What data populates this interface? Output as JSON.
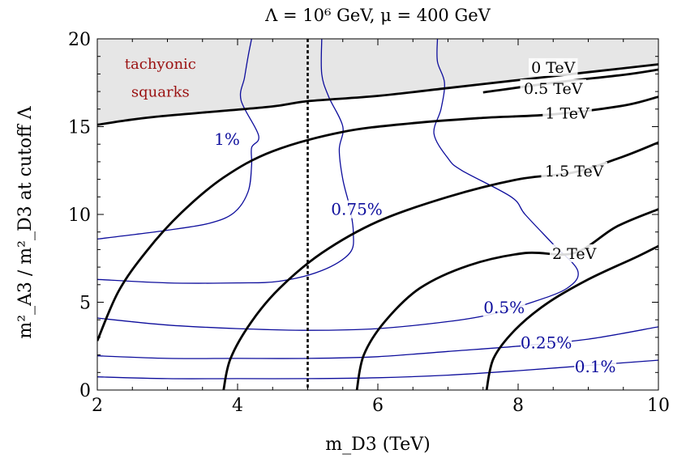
{
  "chart_data": {
    "type": "contour",
    "title": "Λ = 10⁶ GeV, μ = 400 GeV",
    "xlabel": "m_D3 (TeV)",
    "ylabel": "m²_A3 / m²_D3 at cutoff Λ",
    "xlim": [
      2,
      10
    ],
    "ylim": [
      0,
      20
    ],
    "xticks": [
      "2",
      "4",
      "6",
      "8",
      "10"
    ],
    "yticks": [
      "0",
      "5",
      "10",
      "15",
      "20"
    ],
    "vertical_line": {
      "x": 5,
      "style": "dotted"
    },
    "region": {
      "label_line1": "tachyonic",
      "label_line2": "squarks",
      "color": "#e6e6e6",
      "boundary": [
        [
          2,
          15.1
        ],
        [
          2.4,
          15.35
        ],
        [
          2.8,
          15.55
        ],
        [
          3.5,
          15.8
        ],
        [
          4.5,
          16.15
        ],
        [
          5,
          16.45
        ],
        [
          6,
          16.75
        ],
        [
          7,
          17.2
        ],
        [
          8,
          17.65
        ],
        [
          9,
          18.1
        ],
        [
          10,
          18.55
        ]
      ]
    },
    "black_series": [
      {
        "name": "0 TeV",
        "label": "0 TeV",
        "label_at": [
          8.5,
          18.3
        ],
        "points": [
          [
            2,
            15.1
          ],
          [
            2.4,
            15.35
          ],
          [
            2.8,
            15.55
          ],
          [
            3.5,
            15.8
          ],
          [
            4.5,
            16.15
          ],
          [
            5,
            16.45
          ],
          [
            6,
            16.75
          ],
          [
            7,
            17.2
          ],
          [
            8,
            17.65
          ],
          [
            9,
            18.1
          ],
          [
            10,
            18.55
          ]
        ]
      },
      {
        "name": "0.5 TeV",
        "label": "0.5 TeV",
        "label_at": [
          8.5,
          17.1
        ],
        "points": [
          [
            7.5,
            16.95
          ],
          [
            8.5,
            17.5
          ],
          [
            9.5,
            17.95
          ],
          [
            10,
            18.25
          ]
        ]
      },
      {
        "name": "1 TeV",
        "label": "1 TeV",
        "label_at": [
          8.7,
          15.7
        ],
        "points": [
          [
            2,
            2.8
          ],
          [
            2.3,
            5.6
          ],
          [
            2.7,
            7.9
          ],
          [
            3.2,
            10.1
          ],
          [
            3.8,
            12.1
          ],
          [
            4.5,
            13.6
          ],
          [
            5.5,
            14.7
          ],
          [
            6.5,
            15.2
          ],
          [
            7.5,
            15.5
          ],
          [
            8.5,
            15.7
          ],
          [
            9.5,
            16.2
          ],
          [
            10,
            16.7
          ]
        ]
      },
      {
        "name": "1.5 TeV",
        "label": "1.5 TeV",
        "label_at": [
          8.8,
          12.4
        ],
        "points": [
          [
            3.8,
            0
          ],
          [
            3.9,
            1.8
          ],
          [
            4.2,
            3.9
          ],
          [
            4.6,
            5.8
          ],
          [
            5.2,
            7.8
          ],
          [
            6,
            9.6
          ],
          [
            7,
            11
          ],
          [
            8,
            12
          ],
          [
            8.8,
            12.4
          ],
          [
            9.5,
            13.3
          ],
          [
            10,
            14.1
          ]
        ]
      },
      {
        "name": "2 TeV",
        "label": "2 TeV",
        "label_at": [
          8.8,
          7.7
        ],
        "points": [
          [
            5.7,
            0
          ],
          [
            5.8,
            2
          ],
          [
            6.1,
            3.9
          ],
          [
            6.6,
            5.8
          ],
          [
            7.3,
            7.1
          ],
          [
            8.1,
            7.8
          ],
          [
            8.8,
            7.8
          ],
          [
            9.4,
            9.3
          ],
          [
            10,
            10.3
          ]
        ]
      },
      {
        "name": "",
        "label": "",
        "points": [
          [
            7.55,
            0
          ],
          [
            7.65,
            1.8
          ],
          [
            7.95,
            3.4
          ],
          [
            8.4,
            4.9
          ],
          [
            9,
            6.3
          ],
          [
            9.7,
            7.6
          ],
          [
            10,
            8.2
          ]
        ]
      }
    ],
    "blue_series": [
      {
        "name": "1%",
        "label": "1%",
        "label_at": [
          3.85,
          14.2
        ],
        "points": [
          [
            2,
            8.6
          ],
          [
            3,
            9.1
          ],
          [
            3.6,
            9.5
          ],
          [
            3.95,
            10.1
          ],
          [
            4.15,
            11.3
          ],
          [
            4.2,
            12.8
          ],
          [
            4.2,
            13.8
          ],
          [
            4.3,
            14.5
          ],
          [
            4.05,
            16.5
          ],
          [
            4.1,
            17.8
          ],
          [
            4.15,
            19
          ],
          [
            4.2,
            20
          ]
        ]
      },
      {
        "name": "0.75%",
        "label": "0.75%",
        "label_at": [
          5.7,
          10.2
        ],
        "points": [
          [
            2,
            6.3
          ],
          [
            3,
            6.1
          ],
          [
            4,
            6.1
          ],
          [
            4.6,
            6.2
          ],
          [
            5.2,
            6.8
          ],
          [
            5.6,
            7.8
          ],
          [
            5.65,
            9
          ],
          [
            5.6,
            10.4
          ],
          [
            5.5,
            12
          ],
          [
            5.45,
            13.7
          ],
          [
            5.5,
            15
          ],
          [
            5.3,
            16.7
          ],
          [
            5.2,
            18
          ],
          [
            5.2,
            20
          ]
        ]
      },
      {
        "name": "0.5%",
        "label": "0.5%",
        "label_at": [
          7.8,
          4.6
        ],
        "points": [
          [
            2,
            4.1
          ],
          [
            3,
            3.7
          ],
          [
            4,
            3.5
          ],
          [
            5,
            3.4
          ],
          [
            6,
            3.5
          ],
          [
            7,
            3.9
          ],
          [
            7.6,
            4.3
          ],
          [
            8.2,
            5
          ],
          [
            8.7,
            5.8
          ],
          [
            8.85,
            6.8
          ],
          [
            8.5,
            8.3
          ],
          [
            8.1,
            10
          ],
          [
            7.9,
            11
          ],
          [
            7.2,
            12.5
          ],
          [
            7,
            13.2
          ],
          [
            6.8,
            14.6
          ],
          [
            6.9,
            16
          ],
          [
            6.95,
            17.5
          ],
          [
            6.85,
            18.7
          ],
          [
            6.85,
            20
          ]
        ]
      },
      {
        "name": "0.25%",
        "label": "0.25%",
        "label_at": [
          8.4,
          2.6
        ],
        "points": [
          [
            2,
            1.95
          ],
          [
            3,
            1.8
          ],
          [
            4,
            1.8
          ],
          [
            5,
            1.8
          ],
          [
            6,
            1.9
          ],
          [
            7,
            2.2
          ],
          [
            8,
            2.5
          ],
          [
            9,
            2.9
          ],
          [
            10,
            3.6
          ]
        ]
      },
      {
        "name": "0.1%",
        "label": "0.1%",
        "label_at": [
          9.1,
          1.25
        ],
        "points": [
          [
            2,
            0.75
          ],
          [
            3,
            0.65
          ],
          [
            4,
            0.65
          ],
          [
            5,
            0.65
          ],
          [
            6,
            0.7
          ],
          [
            7,
            0.85
          ],
          [
            8,
            1.1
          ],
          [
            9,
            1.4
          ],
          [
            10,
            1.7
          ]
        ]
      }
    ],
    "colors": {
      "black": "#000000",
      "blue": "#0d0d9c",
      "region": "#e6e6e6"
    }
  }
}
